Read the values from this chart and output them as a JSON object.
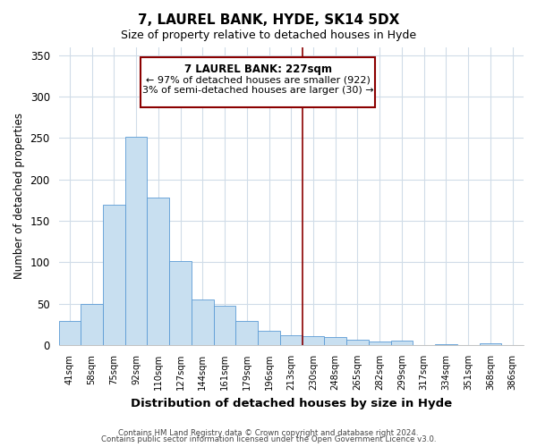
{
  "title": "7, LAUREL BANK, HYDE, SK14 5DX",
  "subtitle": "Size of property relative to detached houses in Hyde",
  "xlabel": "Distribution of detached houses by size in Hyde",
  "ylabel": "Number of detached properties",
  "bar_color": "#c8dff0",
  "bar_edge_color": "#5b9bd5",
  "categories": [
    "41sqm",
    "58sqm",
    "75sqm",
    "92sqm",
    "110sqm",
    "127sqm",
    "144sqm",
    "161sqm",
    "179sqm",
    "196sqm",
    "213sqm",
    "230sqm",
    "248sqm",
    "265sqm",
    "282sqm",
    "299sqm",
    "317sqm",
    "334sqm",
    "351sqm",
    "368sqm",
    "386sqm"
  ],
  "values": [
    29,
    50,
    170,
    252,
    178,
    101,
    55,
    48,
    29,
    17,
    12,
    11,
    10,
    7,
    4,
    6,
    0,
    1,
    0,
    2,
    0
  ],
  "vline_index": 11,
  "vline_color": "#8b0000",
  "annotation_title": "7 LAUREL BANK: 227sqm",
  "annotation_line1": "← 97% of detached houses are smaller (922)",
  "annotation_line2": "3% of semi-detached houses are larger (30) →",
  "ylim": [
    0,
    360
  ],
  "yticks": [
    0,
    50,
    100,
    150,
    200,
    250,
    300,
    350
  ],
  "footer_line1": "Contains HM Land Registry data © Crown copyright and database right 2024.",
  "footer_line2": "Contains public sector information licensed under the Open Government Licence v3.0.",
  "background_color": "#ffffff",
  "plot_bg_color": "#ffffff",
  "grid_color": "#d0dce8"
}
